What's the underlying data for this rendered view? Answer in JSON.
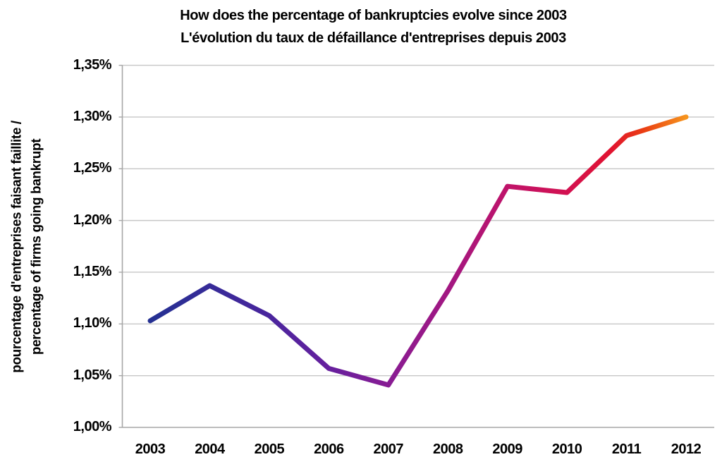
{
  "title": {
    "line1": "How does the percentage of bankruptcies evolve since 2003",
    "line2": "L'évolution du taux de défaillance d'entreprises depuis 2003"
  },
  "y_axis": {
    "title_line1": "pourcentage d'entreprises faisant faillite /",
    "title_line2": "percentage of firms going bankrupt",
    "ticks": [
      {
        "value": 1.35,
        "label": "1,35%"
      },
      {
        "value": 1.3,
        "label": "1,30%"
      },
      {
        "value": 1.25,
        "label": "1,25%"
      },
      {
        "value": 1.2,
        "label": "1,20%"
      },
      {
        "value": 1.15,
        "label": "1,15%"
      },
      {
        "value": 1.1,
        "label": "1,10%"
      },
      {
        "value": 1.05,
        "label": "1,05%"
      },
      {
        "value": 1.0,
        "label": "1,00%"
      }
    ]
  },
  "x_axis": {
    "ticks": [
      "2003",
      "2004",
      "2005",
      "2006",
      "2007",
      "2008",
      "2009",
      "2010",
      "2011",
      "2012"
    ]
  },
  "chart_data": {
    "type": "line",
    "title": "How does the percentage of bankruptcies evolve since 2003 / L'évolution du taux de défaillance d'entreprises depuis 2003",
    "x": [
      2003,
      2004,
      2005,
      2006,
      2007,
      2008,
      2009,
      2010,
      2011,
      2012
    ],
    "values": [
      1.103,
      1.137,
      1.108,
      1.057,
      1.041,
      1.132,
      1.233,
      1.227,
      1.282,
      1.3
    ],
    "unit": "%",
    "decimal_style": "comma",
    "xlabel": "",
    "ylabel": "pourcentage d'entreprises faisant faillite / percentage of firms going bankrupt",
    "ylim": [
      1.0,
      1.35
    ],
    "ytick_step": 0.05,
    "grid": true,
    "legend_position": "none",
    "line_width": 7,
    "line_gradient": [
      {
        "offset": 0.0,
        "color": "#243092"
      },
      {
        "offset": 0.11,
        "color": "#362B98"
      },
      {
        "offset": 0.22,
        "color": "#49259D"
      },
      {
        "offset": 0.33,
        "color": "#65209E"
      },
      {
        "offset": 0.44,
        "color": "#861C94"
      },
      {
        "offset": 0.56,
        "color": "#A31781"
      },
      {
        "offset": 0.67,
        "color": "#C01369"
      },
      {
        "offset": 0.78,
        "color": "#D31150"
      },
      {
        "offset": 0.86,
        "color": "#E11330"
      },
      {
        "offset": 0.92,
        "color": "#EA3D13"
      },
      {
        "offset": 1.0,
        "color": "#F6941D"
      }
    ],
    "grid_color": "#C6C6C6",
    "axis_color": "#A6A6A6",
    "text_color": "#000000",
    "background": "#FFFFFF"
  }
}
